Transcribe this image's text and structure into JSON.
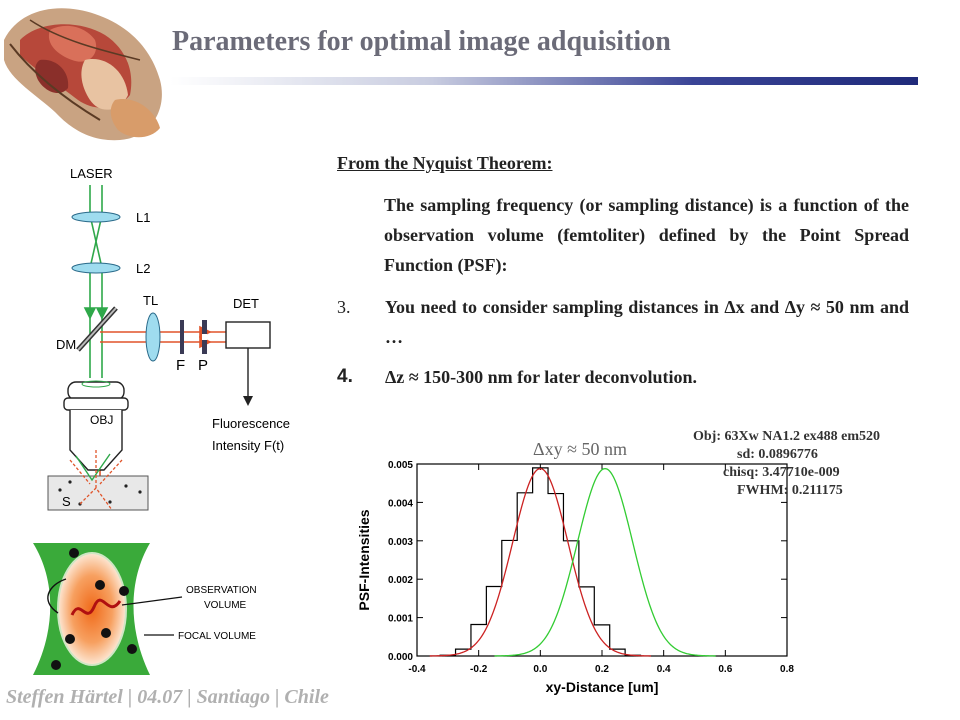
{
  "title": "Parameters for optimal image adquisition",
  "footer": "Steffen Härtel | 04.07 | Santiago | Chile",
  "text": {
    "heading": "From the Nyquist Theorem:",
    "paragraph": "The sampling frequency (or sampling distance) is a function of the observation volume (femtoliter) defined by the Point Spread Function (PSF):",
    "items": [
      {
        "number": "3.",
        "text": "You need to consider sampling distances in Δx and Δy ≈ 50 nm and …"
      },
      {
        "number": "4.",
        "text": "Δz ≈ 150-300 nm for later deconvolution."
      }
    ]
  },
  "diagram": {
    "labels": {
      "laser": "LASER",
      "l1": "L1",
      "l2": "L2",
      "tl": "TL",
      "det": "DET",
      "dm": "DM",
      "f": "F",
      "p": "P",
      "obj": "OBJ",
      "s": "S",
      "fluor1": "Fluorescence",
      "fluor2": "Intensity F(t)"
    },
    "observation": {
      "obs1": "OBSERVATION",
      "obs2": "VOLUME",
      "focal": "FOCAL VOLUME"
    },
    "colors": {
      "beam_green": "#2fa84a",
      "beam_red": "#e0542a",
      "lens": "#9fdcef"
    }
  },
  "chart_data": {
    "type": "line",
    "xlabel": "xy-Distance [um]",
    "ylabel": "PSF-Intensities",
    "xlim": [
      -0.4,
      0.8
    ],
    "ylim": [
      0,
      0.005
    ],
    "xticks": [
      "-0.4",
      "-0.2",
      "0.0",
      "0.2",
      "0.4",
      "0.6",
      "0.8"
    ],
    "yticks": [
      "0.000",
      "0.001",
      "0.002",
      "0.003",
      "0.004",
      "0.005"
    ],
    "annotation": "Δxy ≈ 50 nm",
    "info_box": [
      "Obj: 63Xw NA1.2 ex488 em520",
      "sd: 0.0896776",
      "chisq: 3.47710e-009",
      "FWHM: 0.211175"
    ],
    "series": [
      {
        "color": "#000000",
        "style": "step",
        "x": [
          -0.3,
          -0.25,
          -0.2,
          -0.15,
          -0.1,
          -0.05,
          0.0,
          0.05,
          0.1,
          0.15,
          0.2,
          0.25,
          0.3
        ],
        "y": [
          2e-05,
          0.00018,
          0.00082,
          0.00181,
          0.00301,
          0.00425,
          0.0049,
          0.00423,
          0.003,
          0.0018,
          0.00081,
          0.00018,
          2e-05
        ]
      },
      {
        "color": "#cc2222",
        "style": "gaussian",
        "mean": 0.0,
        "sd": 0.0896776,
        "peak": 0.00488
      },
      {
        "color": "#33cc33",
        "style": "gaussian",
        "mean": 0.21,
        "sd": 0.0896776,
        "peak": 0.00488
      }
    ]
  }
}
